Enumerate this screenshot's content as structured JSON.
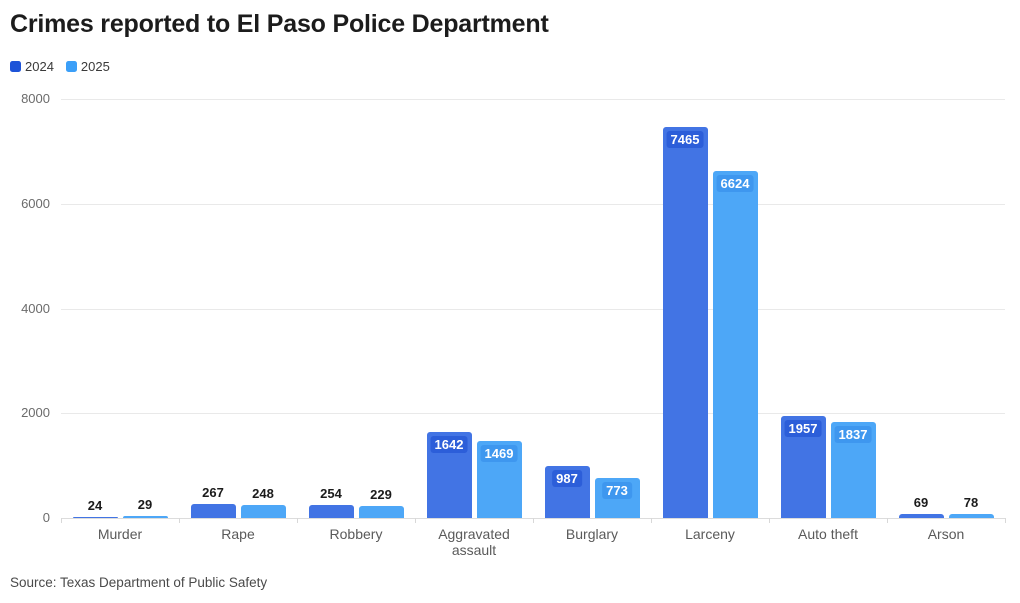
{
  "header": {
    "title": "Crimes reported to El Paso Police Department"
  },
  "chart_data": {
    "type": "bar",
    "title": "Crimes reported to El Paso Police Department",
    "categories": [
      "Murder",
      "Rape",
      "Robbery",
      "Aggravated assault",
      "Burglary",
      "Larceny",
      "Auto theft",
      "Arson"
    ],
    "series": [
      {
        "name": "2024",
        "color": "#4274e4",
        "legend_color": "#1d53d8",
        "label_badge_color": "#2c5ed9",
        "values": [
          24,
          267,
          254,
          1642,
          987,
          7465,
          1957,
          69
        ]
      },
      {
        "name": "2025",
        "color": "#4da7f7",
        "legend_color": "#3b9ff8",
        "label_badge_color": "#3e97ef",
        "values": [
          29,
          248,
          229,
          1469,
          773,
          6624,
          1837,
          78
        ]
      }
    ],
    "xlabel": "",
    "ylabel": "",
    "ylim": [
      0,
      8000
    ],
    "yticks": [
      0,
      2000,
      4000,
      6000,
      8000
    ],
    "grid": true,
    "legend_position": "top-left"
  },
  "footer": {
    "source": "Source: Texas Department of Public Safety"
  }
}
